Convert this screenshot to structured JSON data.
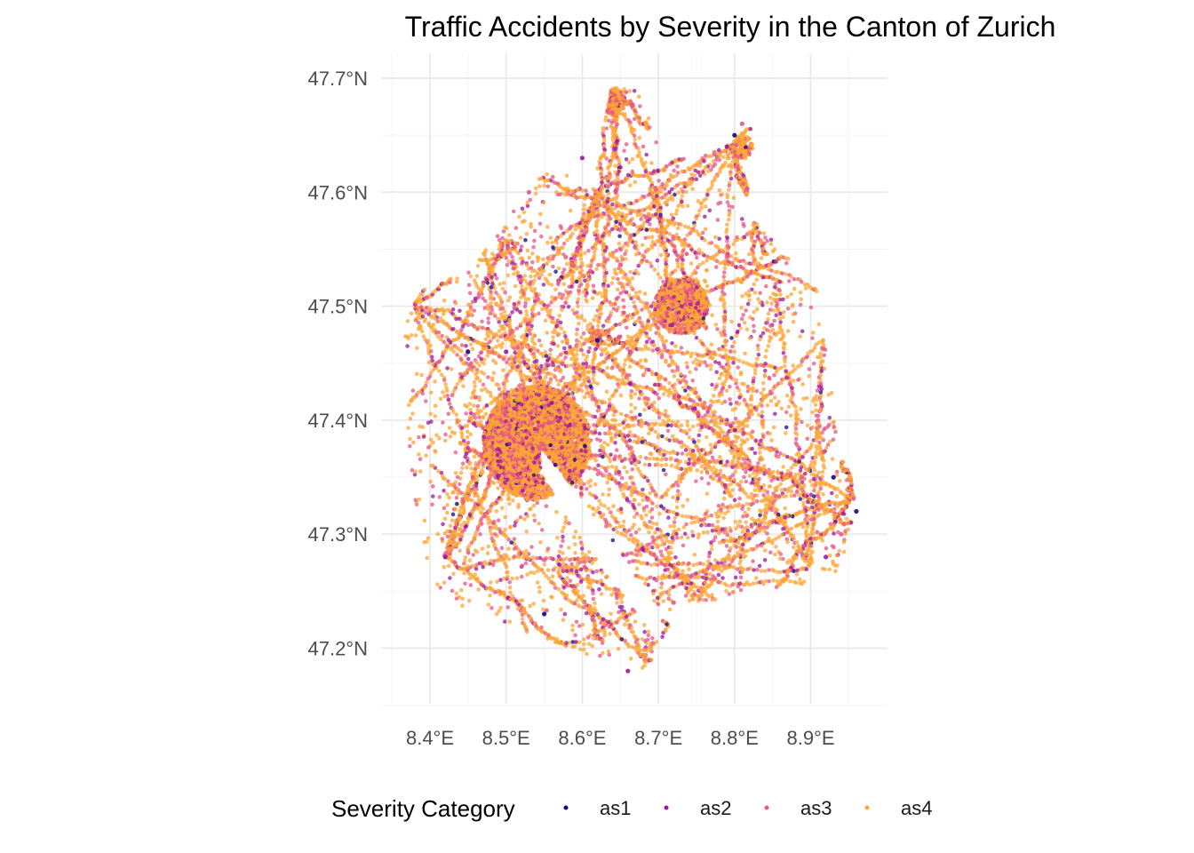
{
  "chart_data": {
    "type": "scatter",
    "title": "Traffic Accidents by Severity in the Canton of Zurich",
    "xlabel": "",
    "ylabel": "",
    "xlim": [
      8.35,
      9.0
    ],
    "ylim": [
      47.14,
      47.71
    ],
    "x_ticks": [
      8.4,
      8.5,
      8.6,
      8.7,
      8.8,
      8.9
    ],
    "x_tick_labels": [
      "8.4°E",
      "8.5°E",
      "8.6°E",
      "8.7°E",
      "8.8°E",
      "8.9°E"
    ],
    "y_ticks": [
      47.2,
      47.3,
      47.4,
      47.5,
      47.6,
      47.7
    ],
    "y_tick_labels": [
      "47.2°N",
      "47.3°N",
      "47.4°N",
      "47.5°N",
      "47.6°N",
      "47.7°N"
    ],
    "grid": true,
    "legend_position": "bottom",
    "legend_title": "Severity Category",
    "series": [
      {
        "name": "as1",
        "color": "#0d0887",
        "weight": 0.01,
        "values": [
          [
            8.45,
            47.46
          ],
          [
            8.62,
            47.47
          ],
          [
            8.8,
            47.65
          ],
          [
            8.93,
            47.35
          ],
          [
            8.96,
            47.32
          ],
          [
            8.55,
            47.23
          ]
        ]
      },
      {
        "name": "as2",
        "color": "#9c179e",
        "weight": 0.1,
        "values": [
          [
            8.6,
            47.63
          ],
          [
            8.79,
            47.64
          ],
          [
            8.92,
            47.28
          ],
          [
            8.66,
            47.18
          ],
          [
            8.42,
            47.28
          ],
          [
            8.5,
            47.46
          ]
        ]
      },
      {
        "name": "as3",
        "color": "#ed7953",
        "weight": 0.24,
        "values": [
          [
            8.46,
            47.42
          ],
          [
            8.81,
            47.66
          ],
          [
            8.94,
            47.3
          ],
          [
            8.72,
            47.24
          ],
          [
            8.53,
            47.6
          ],
          [
            8.7,
            47.5
          ]
        ]
      },
      {
        "name": "as4",
        "color": "#fdb42f",
        "weight": 0.65,
        "values": [
          [
            8.64,
            47.69
          ],
          [
            8.44,
            47.38
          ],
          [
            8.58,
            47.47
          ],
          [
            8.76,
            47.51
          ],
          [
            8.89,
            47.27
          ],
          [
            8.69,
            47.2
          ]
        ]
      }
    ],
    "point_color_rendered": {
      "as1": "#0d0887",
      "as2": "#9c179e",
      "as3": "#e5568a",
      "as4": "#fca636"
    }
  }
}
